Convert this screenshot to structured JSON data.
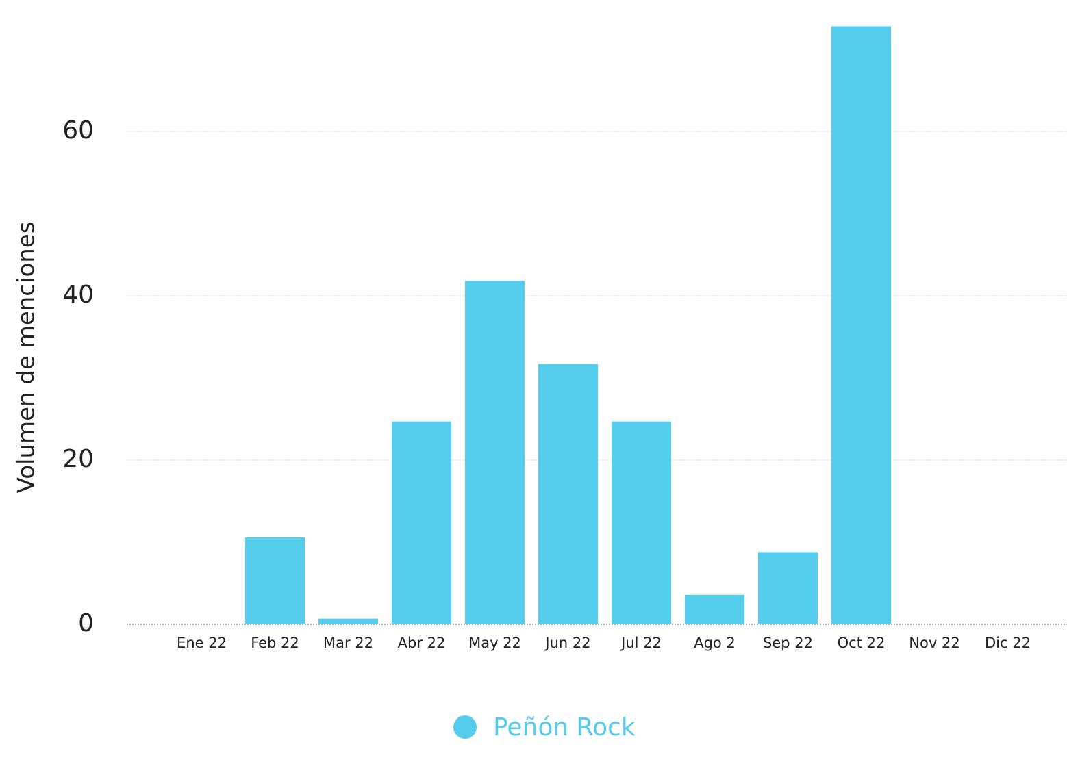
{
  "chart_data": {
    "type": "bar",
    "y_label": "Volumen de menciones",
    "categories": [
      "Ene 22",
      "Feb 22",
      "Mar 22",
      "Abr 22",
      "May 22",
      "Jun 22",
      "Jul 22",
      "Ago 2",
      "Sep 22",
      "Oct 22",
      "Nov 22",
      "Dic 22"
    ],
    "series": [
      {
        "name": "Peñón Rock",
        "color": "#55cdec",
        "values": [
          0,
          10.6,
          0.7,
          24.7,
          41.8,
          31.7,
          24.7,
          3.6,
          8.8,
          72.8,
          0,
          0
        ]
      }
    ],
    "ylim": [
      0,
      75
    ],
    "yticks": [
      0,
      20,
      40,
      60
    ],
    "grid": true,
    "legend": "bottom"
  }
}
